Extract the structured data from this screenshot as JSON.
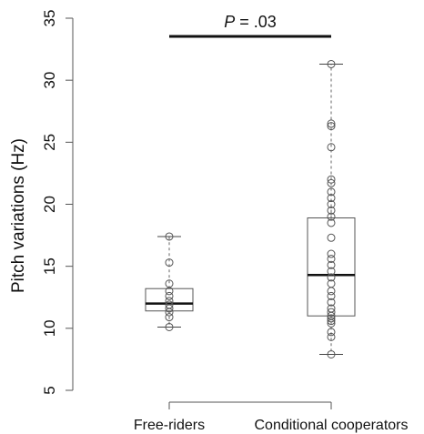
{
  "chart_data": {
    "type": "box",
    "ylabel": "Pitch variations (Hz)",
    "xlabel": "",
    "ylim": [
      5,
      35
    ],
    "yticks": [
      "5",
      "10",
      "15",
      "20",
      "25",
      "30",
      "35"
    ],
    "categories": [
      "Free-riders",
      "Conditional cooperators"
    ],
    "boxes": [
      {
        "category": "Free-riders",
        "min": 10.1,
        "q1": 11.4,
        "median": 12.0,
        "q3": 13.2,
        "max": 17.4,
        "points": [
          10.1,
          10.9,
          11.3,
          11.6,
          11.9,
          12.2,
          12.6,
          13.0,
          13.6,
          15.3,
          17.4
        ]
      },
      {
        "category": "Conditional cooperators",
        "min": 7.9,
        "q1": 11.0,
        "median": 14.3,
        "q3": 18.9,
        "max": 31.3,
        "points": [
          7.9,
          9.3,
          9.7,
          10.4,
          10.6,
          10.8,
          11.0,
          11.3,
          11.6,
          12.1,
          12.6,
          13.0,
          13.6,
          14.1,
          14.6,
          15.1,
          15.6,
          16.0,
          17.3,
          18.5,
          19.0,
          19.5,
          20.0,
          20.5,
          21.0,
          21.7,
          22.0,
          24.6,
          26.3,
          26.5,
          31.3
        ]
      }
    ],
    "annotation": {
      "p_prefix": "P",
      "p_suffix": " = .03"
    }
  }
}
